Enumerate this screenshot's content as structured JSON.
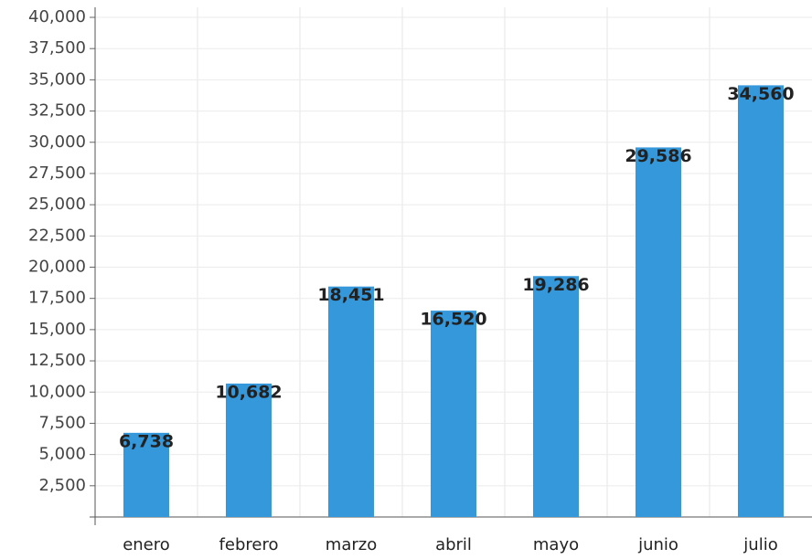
{
  "chart_data": {
    "type": "bar",
    "categories": [
      "enero",
      "febrero",
      "marzo",
      "abril",
      "mayo",
      "junio",
      "julio"
    ],
    "values": [
      6738,
      10682,
      18451,
      16520,
      19286,
      29586,
      34560
    ],
    "value_labels": [
      "6,738",
      "10,682",
      "18,451",
      "16,520",
      "19,286",
      "29,586",
      "34,560"
    ],
    "color": "#3498db",
    "ylim": [
      0,
      40000
    ],
    "yticks": [
      {
        "value": 2500,
        "label": "2,500"
      },
      {
        "value": 5000,
        "label": "5,000"
      },
      {
        "value": 7500,
        "label": "7,500"
      },
      {
        "value": 10000,
        "label": "10,000"
      },
      {
        "value": 12500,
        "label": "12,500"
      },
      {
        "value": 15000,
        "label": "15,000"
      },
      {
        "value": 17500,
        "label": "17,500"
      },
      {
        "value": 20000,
        "label": "20,000"
      },
      {
        "value": 22500,
        "label": "22,500"
      },
      {
        "value": 25000,
        "label": "25,000"
      },
      {
        "value": 27500,
        "label": "27,500"
      },
      {
        "value": 30000,
        "label": "30,000"
      },
      {
        "value": 32500,
        "label": "32,500"
      },
      {
        "value": 35000,
        "label": "35,000"
      },
      {
        "value": 37500,
        "label": "37,500"
      },
      {
        "value": 40000,
        "label": "40,000"
      }
    ],
    "grid": true
  }
}
